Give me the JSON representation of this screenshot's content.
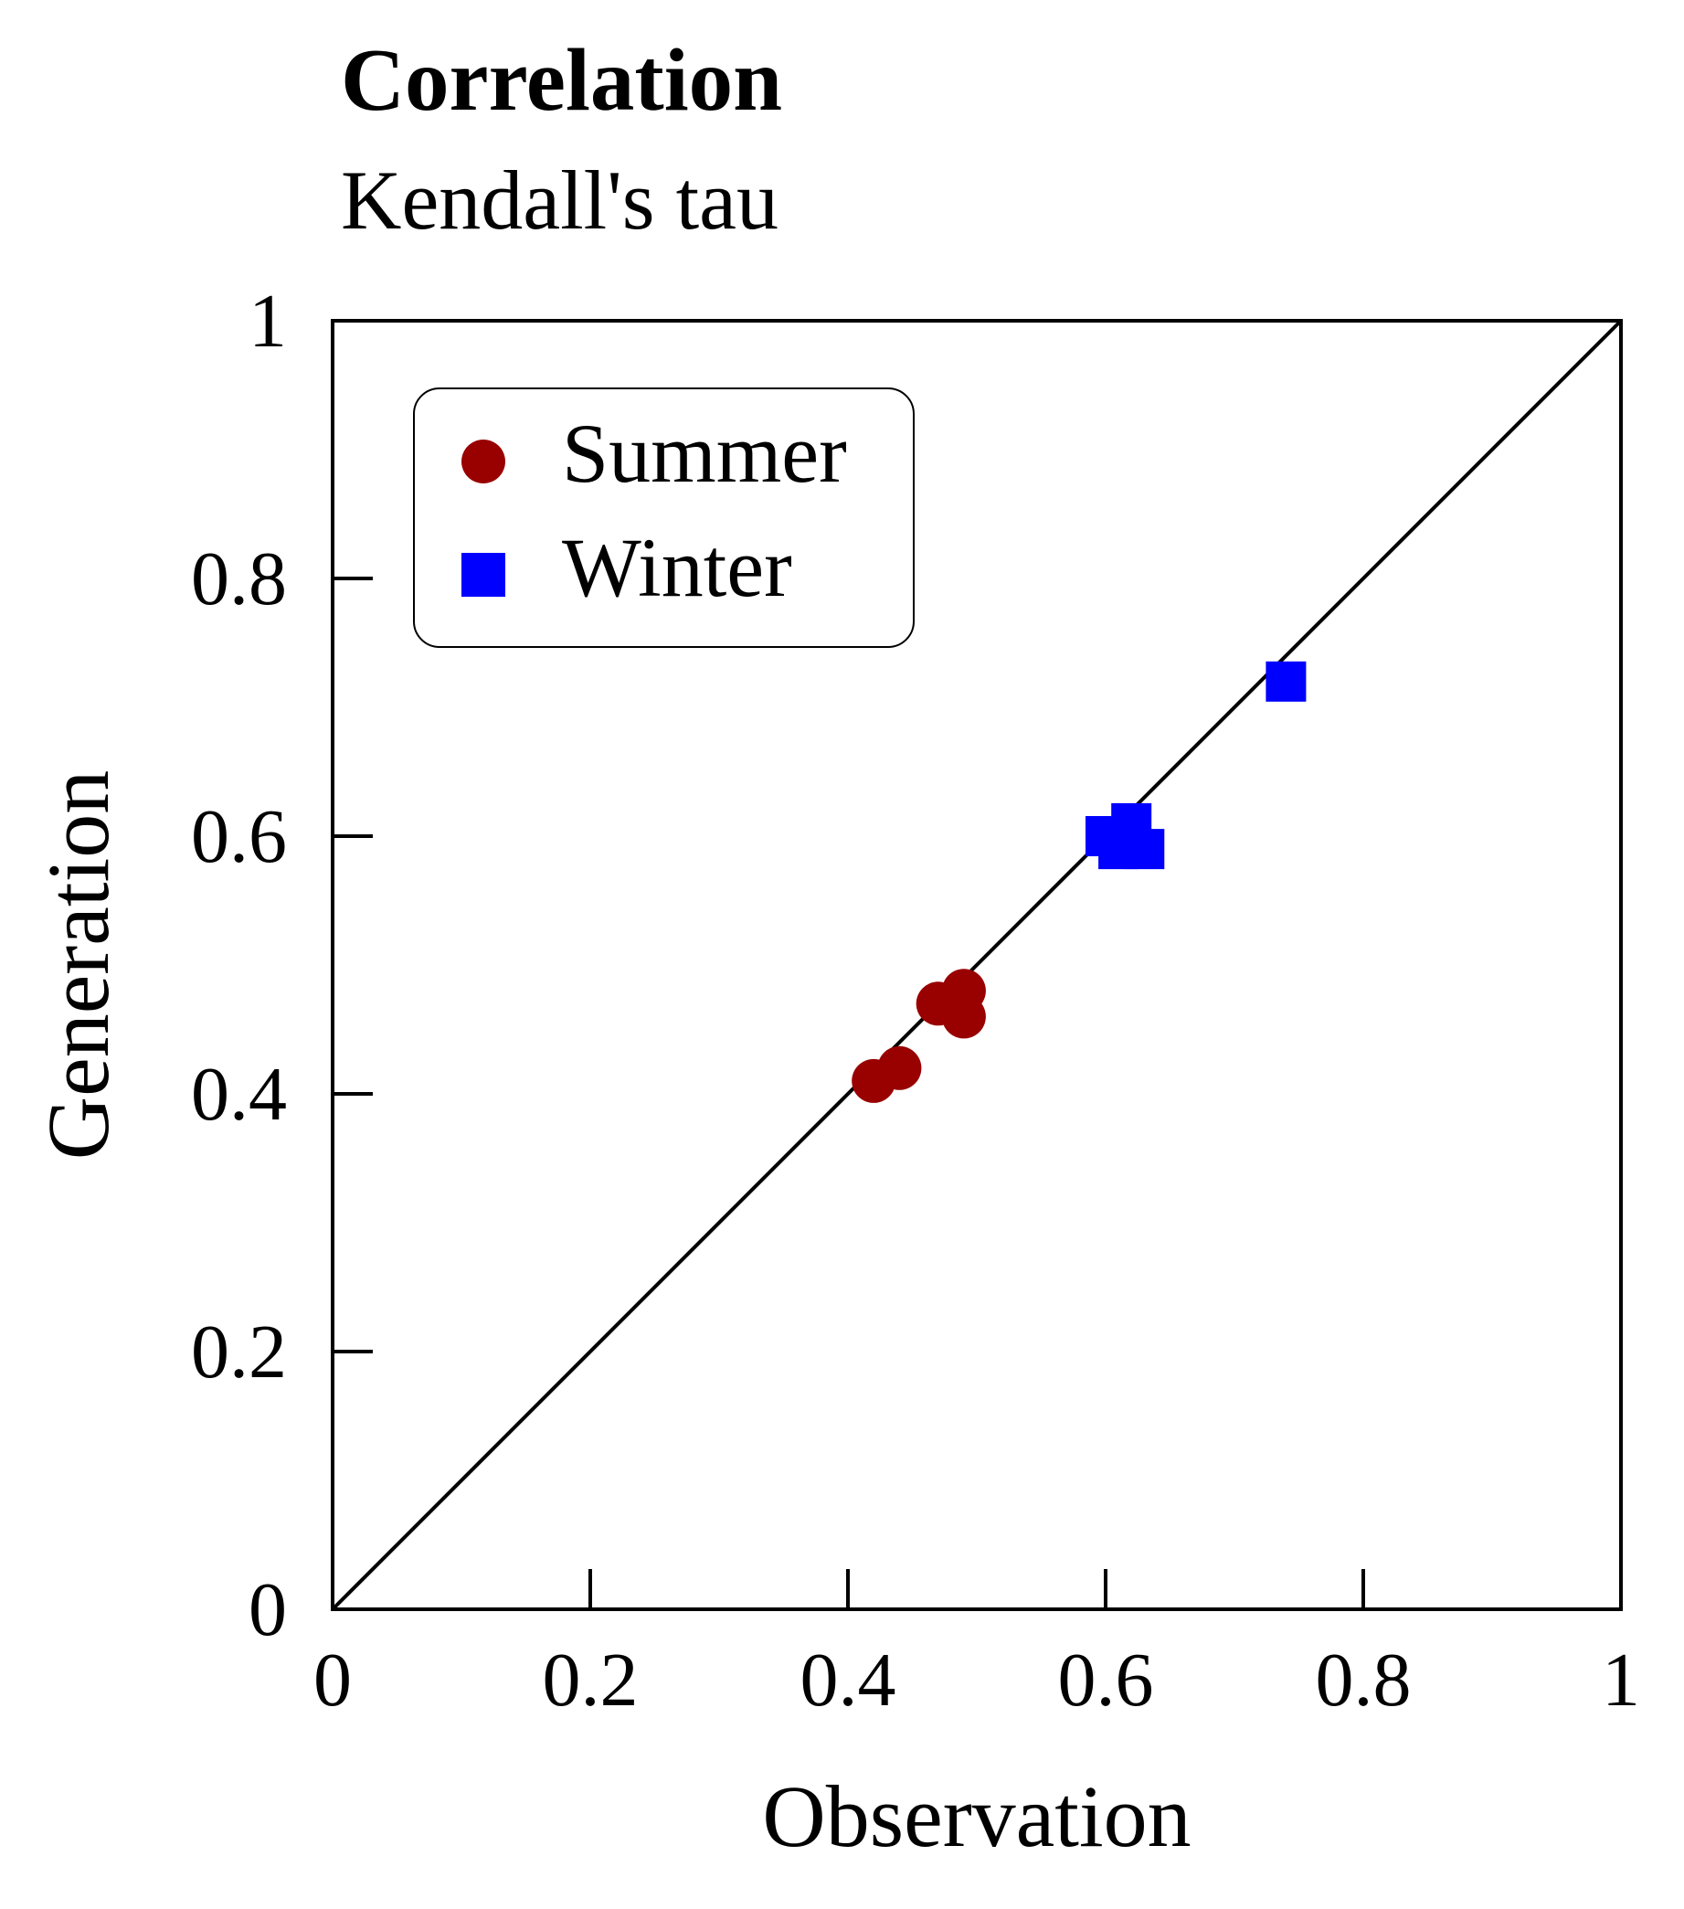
{
  "chart_data": {
    "type": "scatter",
    "title": "Correlation",
    "subtitle": "Kendall's tau",
    "xlabel": "Observation",
    "ylabel": "Generation",
    "xlim": [
      0,
      1
    ],
    "ylim": [
      0,
      1
    ],
    "xticks": [
      "0",
      "0.2",
      "0.4",
      "0.6",
      "0.8",
      "1"
    ],
    "yticks": [
      "0",
      "0.2",
      "0.4",
      "0.6",
      "0.8",
      "1"
    ],
    "grid": false,
    "reference_line": "y = x",
    "legend_position": "top-left",
    "series": [
      {
        "name": "Summer",
        "marker": "circle",
        "color": "#990000",
        "points": [
          [
            0.42,
            0.41
          ],
          [
            0.44,
            0.42
          ],
          [
            0.47,
            0.47
          ],
          [
            0.49,
            0.48
          ],
          [
            0.49,
            0.46
          ]
        ]
      },
      {
        "name": "Winter",
        "marker": "square",
        "color": "#0000ff",
        "points": [
          [
            0.6,
            0.6
          ],
          [
            0.61,
            0.59
          ],
          [
            0.62,
            0.61
          ],
          [
            0.63,
            0.59
          ],
          [
            0.74,
            0.72
          ]
        ]
      }
    ]
  }
}
